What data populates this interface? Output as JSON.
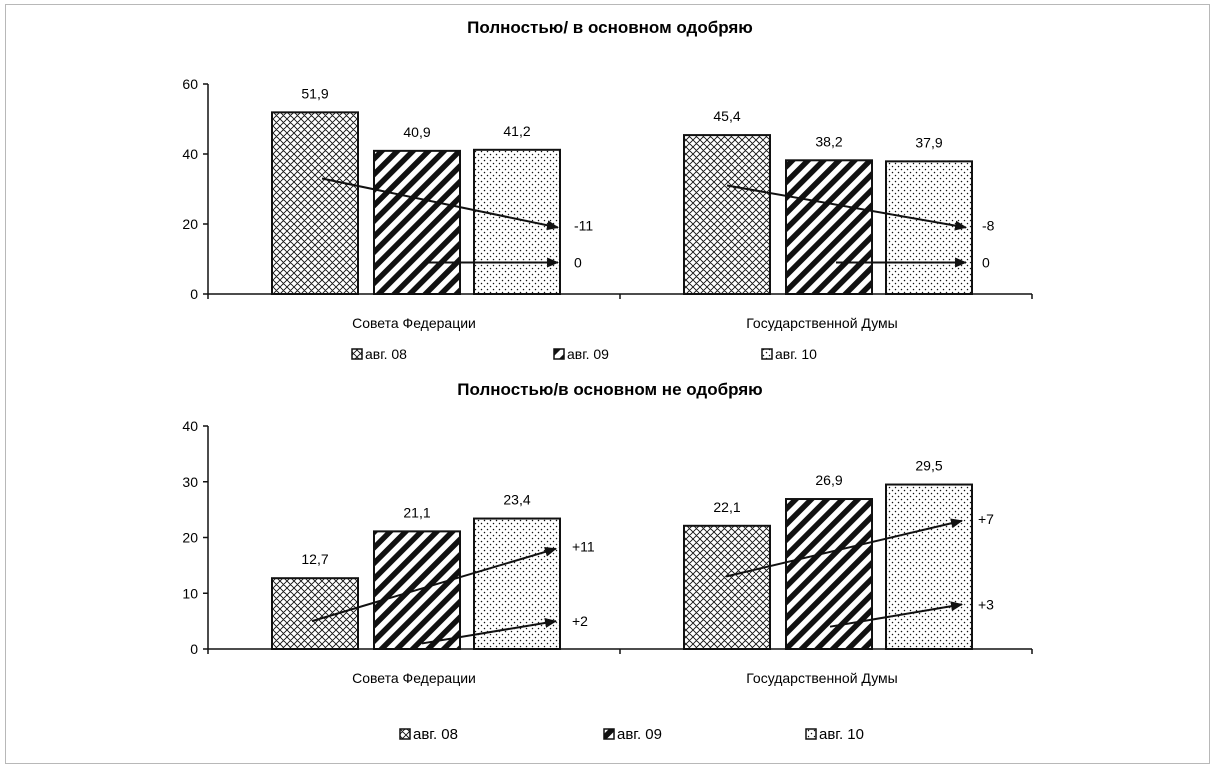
{
  "colors": {
    "ink": "#111111",
    "background": "#ffffff",
    "frame": "#b8b8b8"
  },
  "chart_data": [
    {
      "type": "bar",
      "title": "Полностью/ в основном одобряю",
      "categories": [
        "Совета Федерации",
        "Государственной Думы"
      ],
      "series": [
        {
          "name": "авг. 08",
          "pattern": "crosshatch",
          "values": [
            51.9,
            45.4
          ]
        },
        {
          "name": "авг. 09",
          "pattern": "diagonal-stripes",
          "values": [
            40.9,
            38.2
          ]
        },
        {
          "name": "авг. 10",
          "pattern": "dots",
          "values": [
            41.2,
            37.9
          ]
        }
      ],
      "data_labels": [
        [
          "51,9",
          "40,9",
          "41,2"
        ],
        [
          "45,4",
          "38,2",
          "37,9"
        ]
      ],
      "ylim": [
        0,
        60
      ],
      "yticks": [
        "0",
        "20",
        "40",
        "60"
      ],
      "grid": false,
      "legend_position": "bottom",
      "annotations": [
        {
          "category": 0,
          "text": "-11",
          "from": 33,
          "to": 19
        },
        {
          "category": 0,
          "text": "0",
          "from": 9,
          "to": 9
        },
        {
          "category": 1,
          "text": "-8",
          "from": 31,
          "to": 19
        },
        {
          "category": 1,
          "text": "0",
          "from": 9,
          "to": 9
        }
      ]
    },
    {
      "type": "bar",
      "title": "Полностью/в основном не одобряю",
      "categories": [
        "Совета Федерации",
        "Государственной Думы"
      ],
      "series": [
        {
          "name": "авг. 08",
          "pattern": "crosshatch",
          "values": [
            12.7,
            22.1
          ]
        },
        {
          "name": "авг. 09",
          "pattern": "diagonal-stripes",
          "values": [
            21.1,
            26.9
          ]
        },
        {
          "name": "авг. 10",
          "pattern": "dots",
          "values": [
            23.4,
            29.5
          ]
        }
      ],
      "data_labels": [
        [
          "12,7",
          "21,1",
          "23,4"
        ],
        [
          "22,1",
          "26,9",
          "29,5"
        ]
      ],
      "ylim": [
        0,
        40
      ],
      "yticks": [
        "0",
        "10",
        "20",
        "30",
        "40"
      ],
      "grid": false,
      "legend_position": "bottom",
      "annotations": [
        {
          "category": 0,
          "text": "+11",
          "from": 5,
          "to": 18
        },
        {
          "category": 0,
          "text": "+2",
          "from": 1,
          "to": 5
        },
        {
          "category": 1,
          "text": "+7",
          "from": 13,
          "to": 23
        },
        {
          "category": 1,
          "text": "+3",
          "from": 4,
          "to": 8
        }
      ]
    }
  ]
}
